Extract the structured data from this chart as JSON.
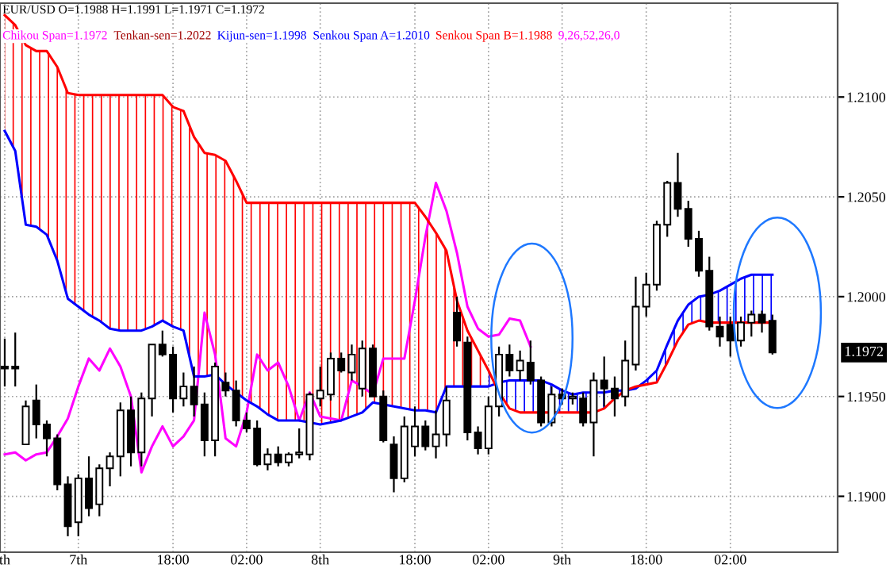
{
  "chart_data": {
    "type": "candlestick",
    "title": "EUR/USD O=1.1988 H=1.1991 L=1.1971 C=1.1972",
    "annotations": [
      "Tenkan-sen=1.2022",
      "Kijun-sen=1.1998",
      "9,26,52,26,0",
      "1.1972"
    ],
    "categories": [
      "th",
      null,
      null,
      null,
      null,
      null,
      null,
      "7th",
      null,
      null,
      null,
      null,
      null,
      null,
      null,
      null,
      "18:00",
      null,
      null,
      null,
      null,
      null,
      null,
      "02:00",
      null,
      null,
      null,
      null,
      null,
      null,
      "8th",
      null,
      null,
      null,
      null,
      null,
      null,
      null,
      null,
      "18:00",
      null,
      null,
      null,
      null,
      null,
      null,
      "02:00",
      null,
      null,
      null,
      null,
      null,
      null,
      "9th",
      null,
      null,
      null,
      null,
      null,
      null,
      null,
      "18:00",
      null,
      null,
      null,
      null,
      null,
      null,
      null,
      "02:00",
      null,
      null,
      null,
      null
    ],
    "ohlc": [
      [
        1.1965,
        1.1979,
        1.1955,
        1.1964
      ],
      [
        1.1965,
        1.1982,
        1.1955,
        1.1964
      ],
      [
        1.1926,
        1.1948,
        1.1926,
        1.1945
      ],
      [
        1.1948,
        1.1956,
        1.1929,
        1.1936
      ],
      [
        1.1936,
        1.1938,
        1.192,
        1.1929
      ],
      [
        1.1929,
        1.1931,
        1.1903,
        1.1906
      ],
      [
        1.1906,
        1.191,
        1.188,
        1.1885
      ],
      [
        1.1887,
        1.1911,
        1.188,
        1.1909
      ],
      [
        1.1909,
        1.192,
        1.189,
        1.1894
      ],
      [
        1.1896,
        1.1916,
        1.189,
        1.1914
      ],
      [
        1.1914,
        1.1922,
        1.1905,
        1.192
      ],
      [
        1.192,
        1.1947,
        1.191,
        1.1943
      ],
      [
        1.1943,
        1.195,
        1.1915,
        1.1922
      ],
      [
        1.1922,
        1.1952,
        1.1915,
        1.1949
      ],
      [
        1.1949,
        1.1976,
        1.194,
        1.1976
      ],
      [
        1.1976,
        1.1983,
        1.197,
        1.1971
      ],
      [
        1.1971,
        1.1975,
        1.1942,
        1.1949
      ],
      [
        1.1949,
        1.1962,
        1.1945,
        1.1955
      ],
      [
        1.1955,
        1.1965,
        1.194,
        1.1946
      ],
      [
        1.1946,
        1.1952,
        1.192,
        1.1928
      ],
      [
        1.1928,
        1.1967,
        1.192,
        1.1965
      ],
      [
        1.1957,
        1.1962,
        1.195,
        1.1953
      ],
      [
        1.1953,
        1.1958,
        1.1935,
        1.1938
      ],
      [
        1.1938,
        1.1942,
        1.1932,
        1.1934
      ],
      [
        1.1934,
        1.1938,
        1.1915,
        1.1916
      ],
      [
        1.1916,
        1.1924,
        1.1913,
        1.1921
      ],
      [
        1.1921,
        1.1925,
        1.1915,
        1.1917
      ],
      [
        1.1917,
        1.1922,
        1.1915,
        1.1921
      ],
      [
        1.1921,
        1.1934,
        1.1919,
        1.1922
      ],
      [
        1.1921,
        1.1952,
        1.1918,
        1.1951
      ],
      [
        1.1949,
        1.1965,
        1.1945,
        1.1953
      ],
      [
        1.1951,
        1.1972,
        1.1948,
        1.1969
      ],
      [
        1.1969,
        1.1972,
        1.1962,
        1.1963
      ],
      [
        1.1962,
        1.1976,
        1.1958,
        1.1971
      ],
      [
        1.1954,
        1.1978,
        1.195,
        1.1974
      ],
      [
        1.1974,
        1.1976,
        1.195,
        1.195
      ],
      [
        1.195,
        1.1953,
        1.1927,
        1.1928
      ],
      [
        1.1926,
        1.193,
        1.1902,
        1.1909
      ],
      [
        1.1909,
        1.194,
        1.1907,
        1.1935
      ],
      [
        1.1925,
        1.1945,
        1.192,
        1.1935
      ],
      [
        1.1935,
        1.1938,
        1.1923,
        1.1925
      ],
      [
        1.1925,
        1.1943,
        1.1919,
        1.1931
      ],
      [
        1.1931,
        1.1955,
        1.1925,
        1.1948
      ],
      [
        1.1992,
        1.2,
        1.1975,
        1.1978
      ],
      [
        1.1977,
        1.198,
        1.1928,
        1.1932
      ],
      [
        1.1932,
        1.1935,
        1.1921,
        1.1924
      ],
      [
        1.1924,
        1.195,
        1.1921,
        1.1945
      ],
      [
        1.1945,
        1.1975,
        1.194,
        1.1971
      ],
      [
        1.1971,
        1.1976,
        1.196,
        1.1963
      ],
      [
        1.1963,
        1.1973,
        1.1958,
        1.1968
      ],
      [
        1.1967,
        1.1978,
        1.1956,
        1.1958
      ],
      [
        1.1958,
        1.196,
        1.1935,
        1.1937
      ],
      [
        1.1937,
        1.1955,
        1.1935,
        1.1951
      ],
      [
        1.1951,
        1.1954,
        1.1946,
        1.1949
      ],
      [
        1.1949,
        1.1952,
        1.1946,
        1.195
      ],
      [
        1.1949,
        1.1952,
        1.1935,
        1.1937
      ],
      [
        1.1937,
        1.1962,
        1.192,
        1.1958
      ],
      [
        1.1958,
        1.197,
        1.1945,
        1.1954
      ],
      [
        1.1954,
        1.196,
        1.194,
        1.1949
      ],
      [
        1.195,
        1.1978,
        1.1945,
        1.1968
      ],
      [
        1.1966,
        1.201,
        1.1963,
        1.1995
      ],
      [
        1.1995,
        1.2012,
        1.199,
        1.2006
      ],
      [
        1.2006,
        1.2038,
        1.2003,
        1.2036
      ],
      [
        1.2036,
        1.2058,
        1.203,
        1.2057
      ],
      [
        1.2057,
        1.2072,
        1.204,
        1.2044
      ],
      [
        1.2044,
        1.2048,
        1.2025,
        1.2029
      ],
      [
        1.2029,
        1.2033,
        1.201,
        1.2013
      ],
      [
        1.2013,
        1.202,
        1.1983,
        1.1985
      ],
      [
        1.1985,
        1.199,
        1.1975,
        1.198
      ],
      [
        1.1986,
        1.199,
        1.197,
        1.1978
      ],
      [
        1.1978,
        1.199,
        1.1975,
        1.1987
      ],
      [
        1.1987,
        1.1993,
        1.198,
        1.1991
      ],
      [
        1.1991,
        1.1993,
        1.1982,
        1.1987
      ],
      [
        1.1988,
        1.1991,
        1.1971,
        1.1972
      ]
    ],
    "series": [
      {
        "name": "Chikou Span=1.1972",
        "type": "line",
        "color": "#ff00ff",
        "values": [
          1.1921,
          1.1922,
          1.1918,
          1.1921,
          1.1922,
          1.193,
          1.1939,
          1.1955,
          1.1969,
          1.1963,
          1.1974,
          1.1965,
          1.195,
          1.1912,
          1.1925,
          1.1935,
          1.1925,
          1.193,
          1.1938,
          1.1992,
          1.1971,
          1.1929,
          1.1925,
          1.1942,
          1.1971,
          1.1963,
          1.1967,
          1.1955,
          1.1938,
          1.1952,
          1.194,
          1.1939,
          1.1938,
          1.1958,
          1.1955,
          1.1951,
          1.1969,
          1.1969,
          1.1969,
          1.1998,
          1.203,
          1.2057,
          1.2043,
          1.2022,
          1.1995,
          1.1984,
          1.198,
          1.1981,
          1.1989,
          1.1988,
          1.1975,
          null,
          null,
          null,
          null,
          null,
          null,
          null,
          null,
          null,
          null,
          null,
          null,
          null,
          null,
          null,
          null,
          null,
          null,
          null,
          null,
          null,
          null,
          null
        ]
      },
      {
        "name": "Senkou Span A=1.2010",
        "type": "line",
        "color": "#0000ff",
        "values": [
          1.2083,
          1.2073,
          1.2036,
          1.2035,
          1.2031,
          1.2018,
          1.1999,
          1.1995,
          1.1991,
          1.1988,
          1.1984,
          1.1983,
          1.1983,
          1.1983,
          1.1985,
          1.1988,
          1.1985,
          1.1983,
          1.196,
          1.196,
          1.1961,
          1.1956,
          1.1952,
          1.1948,
          1.1945,
          1.1941,
          1.1938,
          1.1938,
          1.1938,
          1.1937,
          1.1936,
          1.1937,
          1.1938,
          1.194,
          1.1942,
          1.1947,
          1.1946,
          1.1945,
          1.1944,
          1.1943,
          1.1943,
          1.1942,
          1.1955,
          1.1955,
          1.1955,
          1.1955,
          1.1955,
          1.1957,
          1.1958,
          1.1958,
          1.1958,
          1.1958,
          1.1956,
          1.1953,
          1.1951,
          1.1952,
          1.1952,
          1.1952,
          1.1953,
          1.1953,
          1.1954,
          1.1958,
          1.1963,
          1.1976,
          1.1988,
          1.1996,
          1.2,
          1.2001,
          1.2003,
          1.2006,
          1.2009,
          1.2011,
          1.2011,
          1.2011
        ],
        "lower": [
          null,
          null,
          null,
          null,
          null,
          null,
          null,
          null,
          null,
          null,
          null,
          null,
          null,
          null,
          null,
          null,
          null,
          null,
          null,
          null,
          null,
          null,
          null,
          null,
          null,
          null,
          null,
          null,
          null,
          null,
          null,
          null,
          null,
          null,
          null,
          null,
          null,
          null,
          null,
          null,
          null,
          null,
          null,
          null,
          null,
          null,
          1.1963,
          1.1952,
          1.1944,
          1.1942,
          1.1942,
          1.1942,
          1.1942,
          1.1942,
          1.1942,
          1.1942,
          1.1942,
          1.1944,
          1.1949,
          1.1953,
          1.1955,
          1.1956,
          1.1957,
          1.1967,
          1.1978,
          1.1986,
          1.1988,
          1.1987,
          1.1987,
          1.1987,
          1.1987,
          1.1987,
          1.1987,
          1.1987
        ],
        "upper": [
          null,
          null,
          null,
          null,
          null,
          null,
          null,
          null,
          null,
          null,
          null,
          null,
          null,
          null,
          null,
          null,
          null,
          null,
          null,
          null,
          null,
          null,
          null,
          null,
          null,
          null,
          null,
          null,
          null,
          null,
          null,
          null,
          null,
          null,
          null,
          null,
          null,
          null,
          null,
          null,
          null,
          null,
          null,
          null,
          null,
          null,
          1.1955,
          1.1957,
          1.1958,
          1.1958,
          1.1958,
          1.1958,
          1.1956,
          1.1953,
          1.1951,
          1.1952,
          1.1952,
          1.1952,
          1.1953,
          1.1953,
          1.1954,
          1.1958,
          1.1963,
          1.1976,
          1.1988,
          1.1996,
          1.2,
          1.2001,
          1.2003,
          1.2006,
          1.2009,
          1.2011,
          1.2011,
          1.2011
        ]
      },
      {
        "name": "Senkou Span B=1.1988",
        "type": "line",
        "color": "#ff0000",
        "values": [
          1.2141,
          1.2136,
          1.2126,
          1.2123,
          1.2123,
          1.2115,
          1.2102,
          1.2101,
          1.2101,
          1.2101,
          1.2101,
          1.2101,
          1.2101,
          1.2101,
          1.2101,
          1.2101,
          1.2095,
          1.2093,
          1.208,
          1.2072,
          1.2071,
          1.2068,
          1.2058,
          1.2047,
          1.2047,
          1.2047,
          1.2047,
          1.2047,
          1.2047,
          1.2047,
          1.2047,
          1.2047,
          1.2047,
          1.2047,
          1.2047,
          1.2047,
          1.2047,
          1.2047,
          1.2047,
          1.2047,
          1.204,
          1.2032,
          1.2023,
          1.1998,
          1.1983,
          1.1973,
          1.1963,
          1.1952,
          1.1944,
          1.1942,
          1.1942,
          1.1942,
          1.1942,
          1.1942,
          1.1942,
          1.1942,
          1.1942,
          1.1944,
          1.1949,
          1.1953,
          1.1955,
          1.1956,
          1.1957,
          1.1967,
          1.1978,
          1.1986,
          1.1988,
          1.1987,
          1.1987,
          1.1987,
          1.1987,
          1.1987,
          1.1987,
          1.1987
        ],
        "lower": [
          1.2083,
          1.2073,
          1.2036,
          1.2035,
          1.2031,
          1.2018,
          1.1999,
          1.1995,
          1.1991,
          1.1988,
          1.1984,
          1.1983,
          1.1983,
          1.1983,
          1.1985,
          1.1988,
          1.1985,
          1.1983,
          1.196,
          1.196,
          1.1961,
          1.1956,
          1.1952,
          1.1948,
          1.1945,
          1.1941,
          1.1938,
          1.1938,
          1.1938,
          1.1937,
          1.1936,
          1.1937,
          1.1938,
          1.194,
          1.1942,
          1.1947,
          1.1946,
          1.1945,
          1.1944,
          1.1943,
          1.1943,
          1.1942,
          1.1955,
          1.1955,
          1.1955,
          1.1955,
          1.1955,
          null,
          null,
          null,
          null,
          null,
          null,
          null,
          null,
          null,
          null,
          null,
          null,
          null,
          null,
          null,
          null,
          null,
          null,
          null,
          null,
          null,
          null,
          null,
          null,
          null,
          null,
          null
        ],
        "upper": [
          1.2141,
          1.2136,
          1.2126,
          1.2123,
          1.2123,
          1.2115,
          1.2102,
          1.2101,
          1.2101,
          1.2101,
          1.2101,
          1.2101,
          1.2101,
          1.2101,
          1.2101,
          1.2101,
          1.2095,
          1.2093,
          1.208,
          1.2072,
          1.2071,
          1.2068,
          1.2058,
          1.2047,
          1.2047,
          1.2047,
          1.2047,
          1.2047,
          1.2047,
          1.2047,
          1.2047,
          1.2047,
          1.2047,
          1.2047,
          1.2047,
          1.2047,
          1.2047,
          1.2047,
          1.2047,
          1.2047,
          1.204,
          1.2032,
          1.2023,
          1.1998,
          1.1983,
          1.1973,
          1.1963,
          null,
          null,
          null,
          null,
          null,
          null,
          null,
          null,
          null,
          null,
          null,
          null,
          null,
          null,
          null,
          null,
          null,
          null,
          null,
          null,
          null,
          null,
          null,
          null,
          null,
          null,
          null
        ]
      }
    ],
    "ylim": [
      1.1872,
      1.2147
    ],
    "yticks": [
      {
        "value": 1.19,
        "label": "1.1900"
      },
      {
        "value": 1.195,
        "label": "1.1950"
      },
      {
        "value": 1.2,
        "label": "1.2000"
      },
      {
        "value": 1.205,
        "label": "1.2050"
      },
      {
        "value": 1.21,
        "label": "1.2100"
      }
    ],
    "grid": true,
    "legend": false
  }
}
